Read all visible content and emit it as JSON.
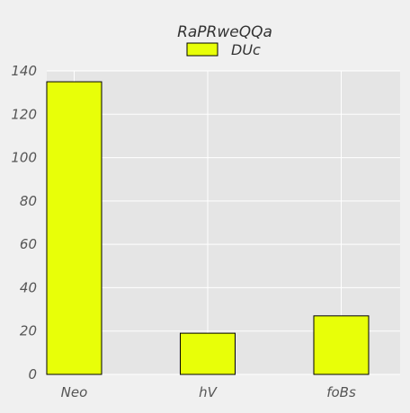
{
  "chart_data": {
    "type": "bar",
    "title": "RaPRweQQa",
    "xlabel": "",
    "ylabel": "",
    "categories": [
      "Neo",
      "hV",
      "foBs"
    ],
    "series": [
      {
        "name": "DUc",
        "values": [
          135,
          19,
          27
        ]
      }
    ],
    "ylim": [
      0,
      140
    ],
    "yticks": [
      0,
      20,
      40,
      60,
      80,
      100,
      120,
      140
    ],
    "grid": true,
    "legend": "top-center",
    "colors": {
      "bar_fill": "#e8ff08",
      "bar_stroke": "#000000",
      "plot_bg": "#e5e5e5",
      "page_bg": "#f0f0f0",
      "grid": "#ffffff",
      "text": "#555555",
      "title": "#333333"
    }
  }
}
